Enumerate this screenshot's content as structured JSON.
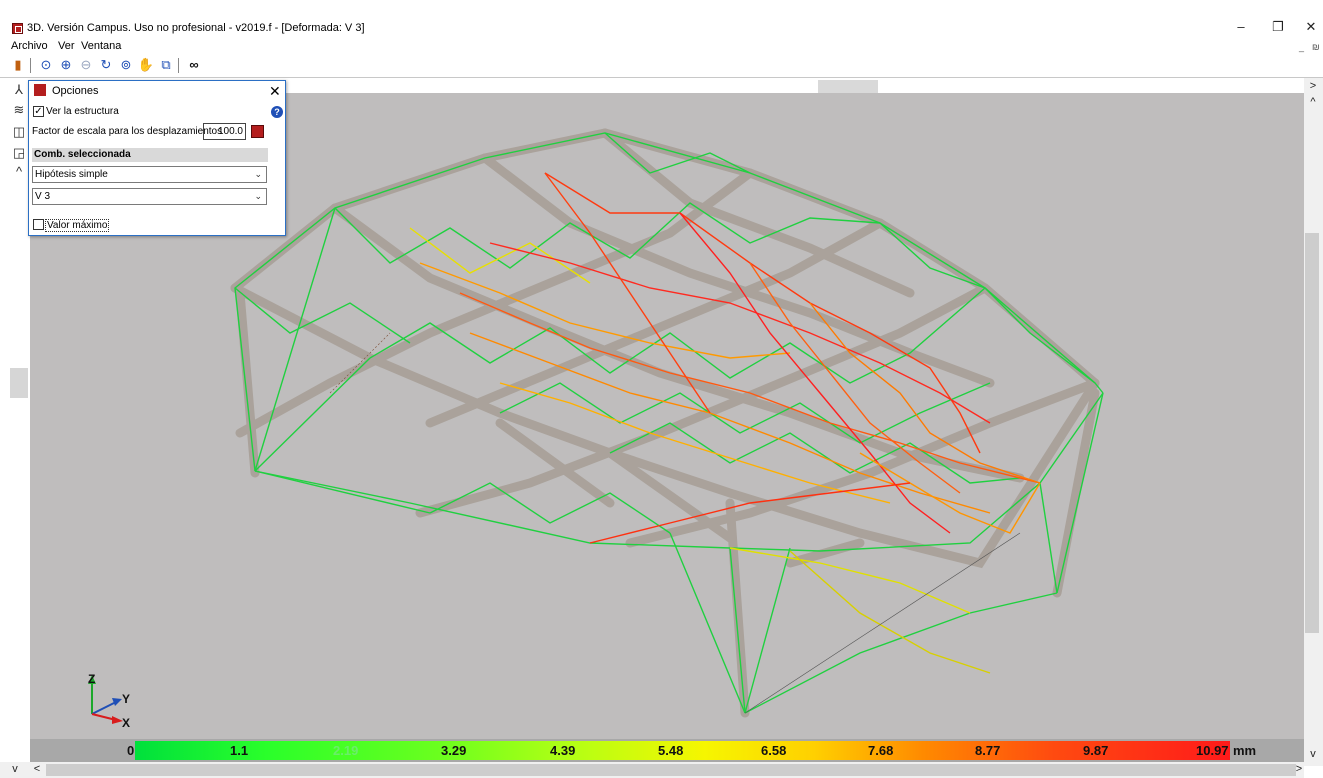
{
  "window": {
    "title": "3D. Versión Campus. Uso no profesional - v2019.f - [Deformada: V 3]",
    "restore_glyph": "❐",
    "close_glyph": "✕",
    "mdi_minimize": "_",
    "mdi_restore": "₪"
  },
  "menu": {
    "items": [
      "Archivo",
      "Ver",
      "Ventana"
    ]
  },
  "toolbar": {
    "icons": [
      "exit-door-icon",
      "zoom-window-icon",
      "zoom-all-icon",
      "zoom-out-icon",
      "rotate-icon",
      "zoom-in-icon",
      "pan-hand-icon",
      "view-select-icon",
      "binoculars-icon"
    ]
  },
  "left_toolbar": {
    "icons": [
      "axes-icon",
      "layers-icon",
      "cube-icon",
      "cube-rotate-icon",
      "chevron-up-icon"
    ]
  },
  "options_panel": {
    "title": "Opciones",
    "close": "✕",
    "help": "?",
    "ver_estructura_label": "Ver la estructura",
    "ver_estructura_checked": true,
    "factor_label": "Factor de escala para los desplazamientos",
    "factor_value": "100.0",
    "comb_header": "Comb. seleccionada",
    "combo_type": "Hipótesis simple",
    "combo_case": "V 3",
    "valor_maximo_label": "Valor máximo",
    "valor_maximo_checked": false
  },
  "axes": {
    "z": "Z",
    "y": "Y",
    "x": "X"
  },
  "legend": {
    "labels": [
      "0",
      "1.1",
      "2.19",
      "3.29",
      "4.39",
      "5.48",
      "6.58",
      "7.68",
      "8.77",
      "9.87",
      "10.97"
    ],
    "unit": "mm",
    "colors": {
      "min": "#00e03c",
      "mid": "#f6f600",
      "max": "#ff1a1a"
    }
  },
  "scroll": {
    "up": "^",
    "down": "v",
    "left": "<",
    "right": ">"
  }
}
